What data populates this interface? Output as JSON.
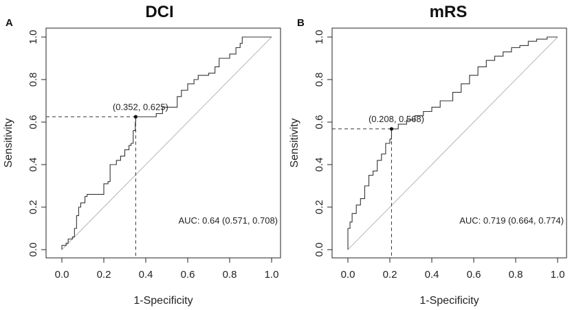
{
  "chart_data": [
    {
      "type": "line",
      "panel": "A",
      "title": "DCI",
      "xlabel": "1-Specificity",
      "ylabel": "Sensitivity",
      "xlim": [
        0,
        1
      ],
      "ylim": [
        0,
        1
      ],
      "xticks": [
        "0.0",
        "0.2",
        "0.4",
        "0.6",
        "0.8",
        "1.0"
      ],
      "yticks": [
        "0.0",
        "0.2",
        "0.4",
        "0.6",
        "0.8",
        "1.0"
      ],
      "diagonal": true,
      "roc": [
        [
          0,
          0
        ],
        [
          0,
          0.02
        ],
        [
          0.02,
          0.03
        ],
        [
          0.03,
          0.05
        ],
        [
          0.05,
          0.06
        ],
        [
          0.06,
          0.1
        ],
        [
          0.07,
          0.16
        ],
        [
          0.08,
          0.2
        ],
        [
          0.09,
          0.22
        ],
        [
          0.1,
          0.22
        ],
        [
          0.11,
          0.25
        ],
        [
          0.12,
          0.26
        ],
        [
          0.19,
          0.26
        ],
        [
          0.2,
          0.31
        ],
        [
          0.22,
          0.32
        ],
        [
          0.23,
          0.4
        ],
        [
          0.26,
          0.42
        ],
        [
          0.28,
          0.44
        ],
        [
          0.3,
          0.47
        ],
        [
          0.32,
          0.49
        ],
        [
          0.33,
          0.5
        ],
        [
          0.34,
          0.56
        ],
        [
          0.35,
          0.6
        ],
        [
          0.352,
          0.625
        ],
        [
          0.42,
          0.625
        ],
        [
          0.45,
          0.64
        ],
        [
          0.48,
          0.67
        ],
        [
          0.52,
          0.67
        ],
        [
          0.55,
          0.72
        ],
        [
          0.57,
          0.75
        ],
        [
          0.6,
          0.78
        ],
        [
          0.63,
          0.8
        ],
        [
          0.65,
          0.82
        ],
        [
          0.7,
          0.83
        ],
        [
          0.73,
          0.86
        ],
        [
          0.75,
          0.9
        ],
        [
          0.8,
          0.92
        ],
        [
          0.83,
          0.95
        ],
        [
          0.85,
          0.97
        ],
        [
          0.86,
          1.0
        ],
        [
          1.0,
          1.0
        ]
      ],
      "optimal_point": {
        "x": 0.352,
        "y": 0.625,
        "label": "(0.352, 0.625)"
      },
      "auc_label": "AUC: 0.64 (0.571, 0.708)"
    },
    {
      "type": "line",
      "panel": "B",
      "title": "mRS",
      "xlabel": "1-Specificity",
      "ylabel": "Sensitivity",
      "xlim": [
        0,
        1
      ],
      "ylim": [
        0,
        1
      ],
      "xticks": [
        "0.0",
        "0.2",
        "0.4",
        "0.6",
        "0.8",
        "1.0"
      ],
      "yticks": [
        "0.0",
        "0.2",
        "0.4",
        "0.6",
        "0.8",
        "1.0"
      ],
      "diagonal": true,
      "roc": [
        [
          0,
          0
        ],
        [
          0,
          0.1
        ],
        [
          0.01,
          0.13
        ],
        [
          0.02,
          0.17
        ],
        [
          0.04,
          0.21
        ],
        [
          0.06,
          0.24
        ],
        [
          0.08,
          0.3
        ],
        [
          0.1,
          0.35
        ],
        [
          0.12,
          0.37
        ],
        [
          0.14,
          0.42
        ],
        [
          0.16,
          0.45
        ],
        [
          0.18,
          0.5
        ],
        [
          0.2,
          0.52
        ],
        [
          0.208,
          0.568
        ],
        [
          0.24,
          0.59
        ],
        [
          0.28,
          0.61
        ],
        [
          0.32,
          0.63
        ],
        [
          0.36,
          0.65
        ],
        [
          0.4,
          0.67
        ],
        [
          0.44,
          0.7
        ],
        [
          0.5,
          0.74
        ],
        [
          0.54,
          0.78
        ],
        [
          0.58,
          0.82
        ],
        [
          0.62,
          0.86
        ],
        [
          0.66,
          0.89
        ],
        [
          0.7,
          0.91
        ],
        [
          0.74,
          0.93
        ],
        [
          0.78,
          0.95
        ],
        [
          0.82,
          0.96
        ],
        [
          0.86,
          0.98
        ],
        [
          0.9,
          0.99
        ],
        [
          0.95,
          1.0
        ],
        [
          1.0,
          1.0
        ]
      ],
      "optimal_point": {
        "x": 0.208,
        "y": 0.568,
        "label": "(0.208, 0.568)"
      },
      "auc_label": "AUC: 0.719 (0.664, 0.774)"
    }
  ]
}
